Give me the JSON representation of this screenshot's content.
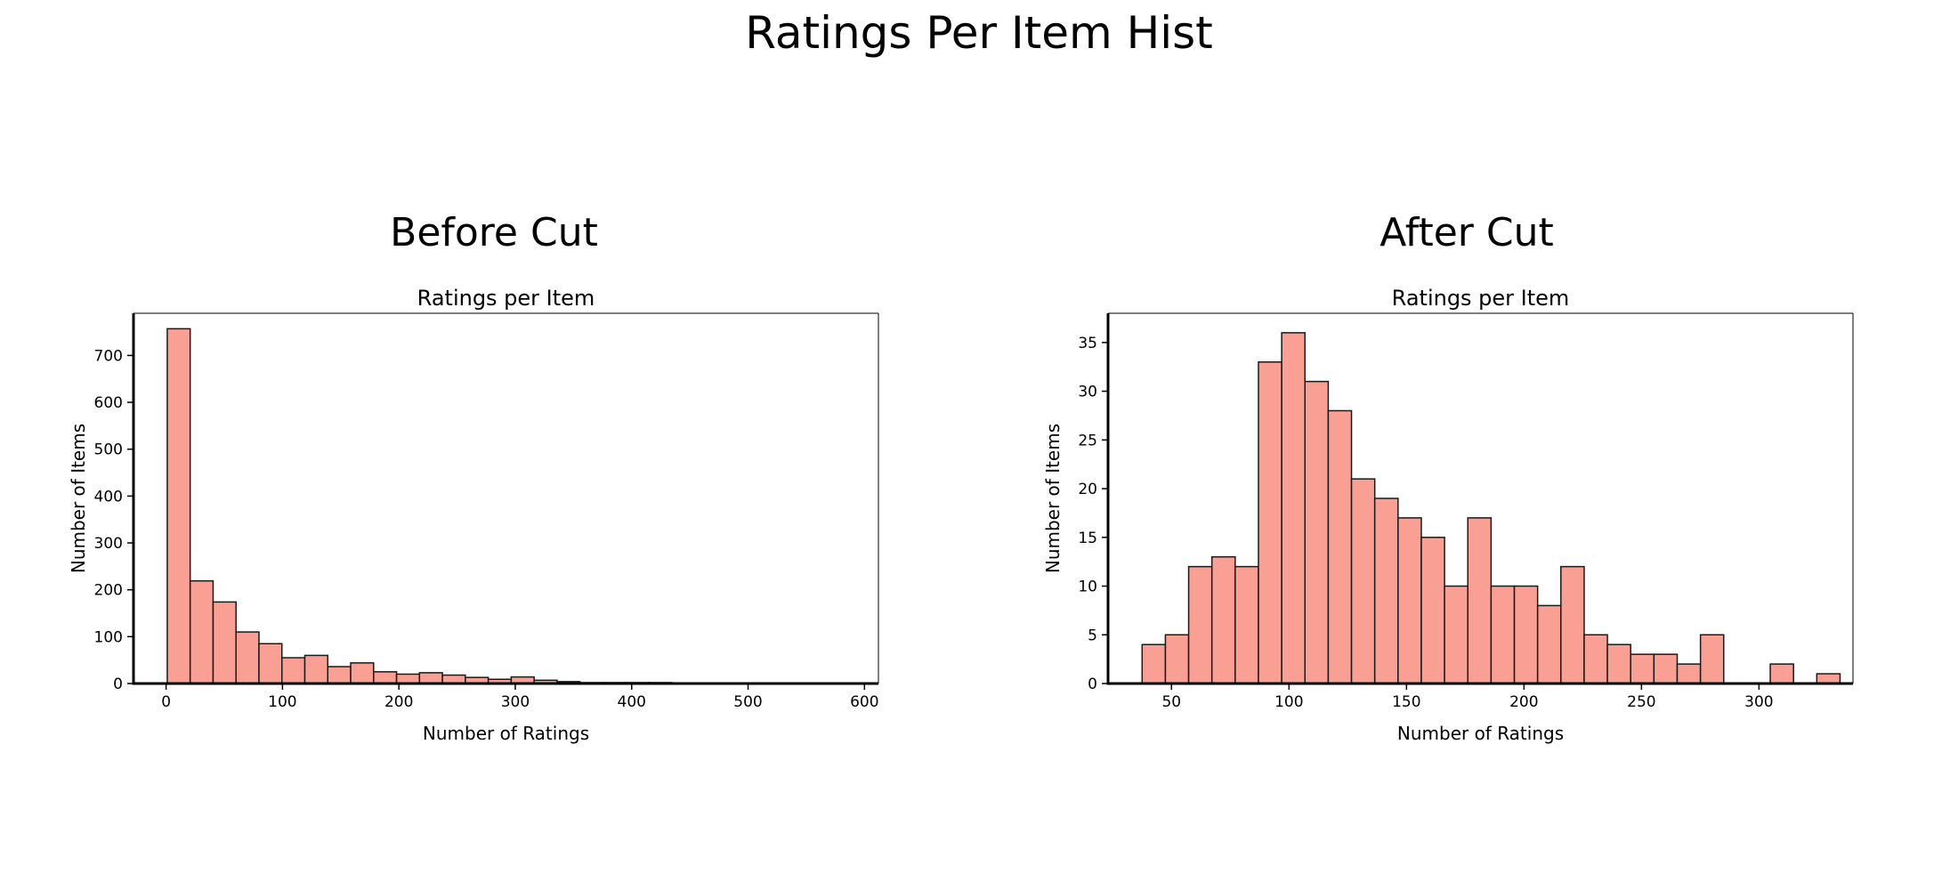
{
  "suptitle": "Ratings Per Item Hist",
  "panels": [
    {
      "heading": "Before Cut"
    },
    {
      "heading": "After Cut"
    }
  ],
  "colors": {
    "bar_fill": "#fa9f93",
    "bar_edge": "#1a1a1a"
  },
  "chart_data": [
    {
      "type": "bar",
      "title": "Ratings per Item",
      "xlabel": "Number of Ratings",
      "ylabel": "Number of Items",
      "xlim": [
        -28,
        612
      ],
      "ylim": [
        0,
        790
      ],
      "xticks": [
        0,
        100,
        200,
        300,
        400,
        500,
        600
      ],
      "yticks": [
        0,
        100,
        200,
        300,
        400,
        500,
        600,
        700
      ],
      "bin_edges": [
        1,
        20.7,
        40.4,
        60.1,
        79.8,
        99.5,
        119.2,
        138.9,
        158.6,
        178.3,
        198,
        217.7,
        237.4,
        257.1,
        276.8,
        296.5,
        316.2,
        335.9,
        355.6,
        375.3,
        395,
        414.7,
        434.4,
        454.1,
        473.8,
        493.5,
        513.2,
        532.9,
        552.6,
        572.3,
        592
      ],
      "values": [
        757,
        219,
        174,
        110,
        85,
        55,
        60,
        36,
        44,
        25,
        20,
        23,
        18,
        13,
        9,
        14,
        7,
        4,
        2,
        2,
        2,
        2,
        1,
        0,
        1,
        0,
        1,
        0,
        0,
        0
      ],
      "grid": false
    },
    {
      "type": "bar",
      "title": "Ratings per Item",
      "xlabel": "Number of Ratings",
      "ylabel": "Number of Items",
      "xlim": [
        23,
        340
      ],
      "ylim": [
        0,
        38
      ],
      "xticks": [
        50,
        100,
        150,
        200,
        250,
        300
      ],
      "yticks": [
        0,
        5,
        10,
        15,
        20,
        25,
        30,
        35
      ],
      "bin_edges": [
        37.5,
        47.4,
        57.3,
        67.2,
        77.1,
        87,
        96.9,
        106.8,
        116.7,
        126.6,
        136.5,
        146.4,
        156.3,
        166.2,
        176.1,
        186,
        195.9,
        205.8,
        215.7,
        225.6,
        235.5,
        245.4,
        255.3,
        265.2,
        275.1,
        285,
        294.9,
        304.8,
        314.7,
        324.6,
        334.5
      ],
      "values": [
        4,
        5,
        12,
        13,
        12,
        33,
        36,
        31,
        28,
        21,
        19,
        17,
        15,
        10,
        17,
        10,
        10,
        8,
        12,
        5,
        4,
        3,
        3,
        2,
        5,
        0,
        0,
        2,
        0,
        1
      ],
      "grid": false
    }
  ]
}
